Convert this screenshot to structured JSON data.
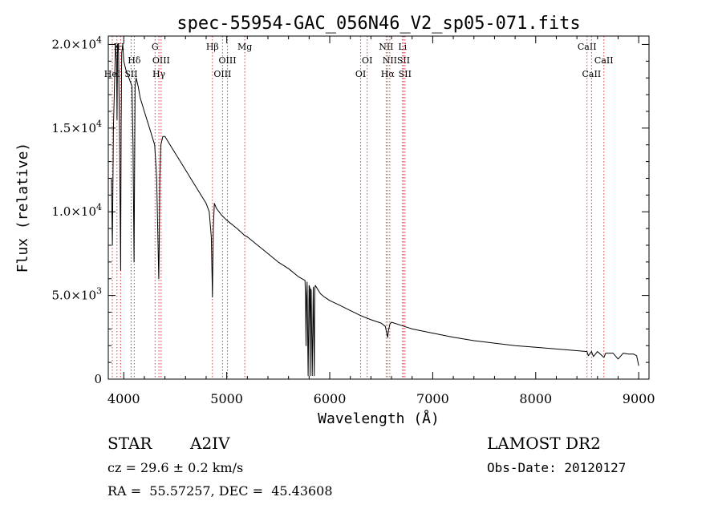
{
  "chart_data": {
    "type": "line",
    "title": "spec-55954-GAC_056N46_V2_sp05-071.fits",
    "xlabel": "Wavelength (Å)",
    "ylabel": "Flux (relative)",
    "xlim": [
      3850,
      9100
    ],
    "ylim": [
      0,
      20500
    ],
    "x_ticks": [
      4000,
      5000,
      6000,
      7000,
      8000,
      9000
    ],
    "x_tick_labels": [
      "4000",
      "5000",
      "6000",
      "7000",
      "8000",
      "9000"
    ],
    "y_ticks": [
      0,
      5000,
      10000,
      15000,
      20000
    ],
    "y_tick_labels": [
      {
        "mantissa": "0",
        "exp": ""
      },
      {
        "mantissa": "5.0×10",
        "exp": "3"
      },
      {
        "mantissa": "1.0×10",
        "exp": "4"
      },
      {
        "mantissa": "1.5×10",
        "exp": "4"
      },
      {
        "mantissa": "2.0×10",
        "exp": "4"
      }
    ],
    "series": [
      {
        "color": "#000000",
        "x": [
          3880,
          3890,
          3900,
          3910,
          3920,
          3930,
          3935,
          3940,
          3950,
          3960,
          3970,
          3975,
          3980,
          3990,
          4000,
          4020,
          4050,
          4080,
          4090,
          4100,
          4105,
          4110,
          4120,
          4140,
          4160,
          4200,
          4250,
          4300,
          4320,
          4330,
          4340,
          4345,
          4350,
          4360,
          4380,
          4400,
          4450,
          4500,
          4550,
          4600,
          4650,
          4700,
          4750,
          4800,
          4830,
          4850,
          4858,
          4861,
          4864,
          4870,
          4880,
          4900,
          4950,
          5000,
          5100,
          5170,
          5200,
          5300,
          5400,
          5500,
          5600,
          5700,
          5760,
          5765,
          5770,
          5775,
          5780,
          5790,
          5800,
          5805,
          5810,
          5815,
          5820,
          5830,
          5840,
          5850,
          5855,
          5860,
          5870,
          5880,
          5890,
          5900,
          5910,
          5950,
          6000,
          6100,
          6200,
          6300,
          6400,
          6500,
          6540,
          6555,
          6563,
          6570,
          6585,
          6600,
          6700,
          6800,
          7000,
          7200,
          7400,
          7600,
          7800,
          8000,
          8200,
          8400,
          8498,
          8510,
          8542,
          8560,
          8600,
          8662,
          8680,
          8750,
          8800,
          8850,
          8900,
          8950,
          8980,
          9000
        ],
        "y": [
          12000,
          8000,
          15000,
          17500,
          20000,
          19000,
          15500,
          20000,
          19500,
          14000,
          6500,
          15000,
          19500,
          20000,
          19000,
          18500,
          18000,
          17500,
          14000,
          7000,
          12000,
          17500,
          18000,
          17500,
          16800,
          16000,
          15000,
          14000,
          12000,
          9000,
          6000,
          8000,
          12000,
          14000,
          14500,
          14500,
          14000,
          13500,
          13000,
          12500,
          12000,
          11500,
          11000,
          10500,
          10000,
          8500,
          6000,
          4900,
          6500,
          9000,
          10500,
          10200,
          9800,
          9500,
          9000,
          8600,
          8500,
          8000,
          7500,
          7000,
          6600,
          6100,
          5900,
          5000,
          2000,
          5000,
          5800,
          200,
          5600,
          5500,
          200,
          5400,
          5300,
          200,
          5500,
          200,
          5400,
          5600,
          5500,
          5400,
          5300,
          5200,
          5100,
          4900,
          4700,
          4400,
          4100,
          3800,
          3550,
          3350,
          3150,
          2700,
          2500,
          2900,
          3300,
          3400,
          3200,
          3000,
          2750,
          2500,
          2300,
          2150,
          2000,
          1900,
          1800,
          1700,
          1650,
          1400,
          1650,
          1350,
          1650,
          1300,
          1550,
          1550,
          1200,
          1550,
          1500,
          1500,
          1400,
          800
        ]
      }
    ],
    "line_markers": [
      {
        "wavelength": 3889,
        "label": "HeI",
        "row": 3
      },
      {
        "wavelength": 3934,
        "label": "K",
        "row": 1
      },
      {
        "wavelength": 3970,
        "label": "H",
        "row": 1
      },
      {
        "wavelength": 4072,
        "label": "SII",
        "row": 3
      },
      {
        "wavelength": 4102,
        "label": "Hδ",
        "row": 2
      },
      {
        "wavelength": 4304,
        "label": "G",
        "row": 1
      },
      {
        "wavelength": 4341,
        "label": "Hγ",
        "row": 3
      },
      {
        "wavelength": 4363,
        "label": "OIII",
        "row": 2
      },
      {
        "wavelength": 4861,
        "label": "Hβ",
        "row": 1
      },
      {
        "wavelength": 4959,
        "label": "OIII",
        "row": 3
      },
      {
        "wavelength": 5007,
        "label": "OIII",
        "row": 2
      },
      {
        "wavelength": 5175,
        "label": "Mg",
        "row": 1
      },
      {
        "wavelength": 6300,
        "label": "OI",
        "row": 3
      },
      {
        "wavelength": 6364,
        "label": "OI",
        "row": 2
      },
      {
        "wavelength": 6548,
        "label": "NII",
        "row": 1
      },
      {
        "wavelength": 6563,
        "label": "Hα",
        "row": 3
      },
      {
        "wavelength": 6583,
        "label": "NII",
        "row": 2
      },
      {
        "wavelength": 6707,
        "label": "Li",
        "row": 1
      },
      {
        "wavelength": 6716,
        "label": "SII",
        "row": 2
      },
      {
        "wavelength": 6731,
        "label": "SII",
        "row": 3
      },
      {
        "wavelength": 8498,
        "label": "CaII",
        "row": 1
      },
      {
        "wavelength": 8542,
        "label": "CaII",
        "row": 3
      },
      {
        "wavelength": 8662,
        "label": "CaII",
        "row": 2
      }
    ],
    "grid": false,
    "legend": "none"
  },
  "info": {
    "object_class": "STAR",
    "subclass": "A2IV",
    "survey": "LAMOST DR2",
    "cz": "cz = 29.6 ± 0.2 km/s",
    "obs_date": "Obs-Date: 20120127",
    "coords": "RA =  55.57257, DEC =  45.43608"
  },
  "colors": {
    "spectrum": "#000000",
    "line_markers": "#e03a3a",
    "text": "#000000"
  }
}
